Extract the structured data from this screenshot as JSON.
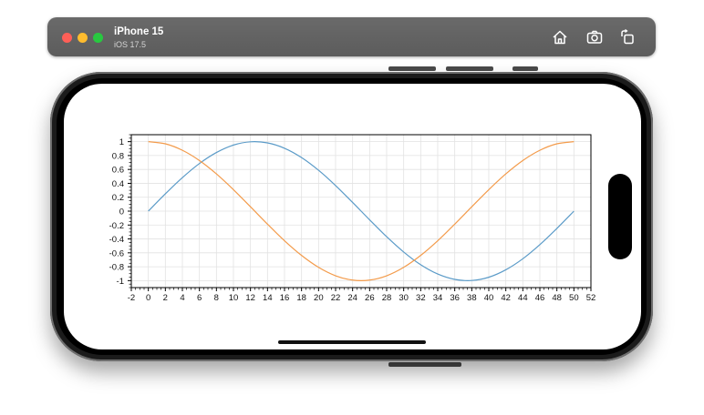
{
  "simulator": {
    "device_name": "iPhone 15",
    "os_version": "iOS 17.5",
    "toolbar_icons": [
      "home-icon",
      "screenshot-icon",
      "rotate-icon"
    ]
  },
  "colors": {
    "series_sine": "#5b9bc8",
    "series_cosine": "#f39b4b",
    "grid": "#e2e2e2",
    "axis": "#000000"
  },
  "chart_data": {
    "type": "line",
    "title": "",
    "xlabel": "",
    "ylabel": "",
    "xlim": [
      -2,
      52
    ],
    "ylim": [
      -1.1,
      1.1
    ],
    "x_ticks": [
      -2,
      0,
      2,
      4,
      6,
      8,
      10,
      12,
      14,
      16,
      18,
      20,
      22,
      24,
      26,
      28,
      30,
      32,
      34,
      36,
      38,
      40,
      42,
      44,
      46,
      48,
      50,
      52
    ],
    "y_ticks": [
      1,
      0.8,
      0.6,
      0.4,
      0.2,
      0,
      -0.2,
      -0.4,
      -0.6,
      -0.8,
      -1
    ],
    "grid": true,
    "legend": "none",
    "series": [
      {
        "x": [
          0,
          2,
          4,
          6,
          8,
          10,
          12,
          14,
          16,
          18,
          20,
          22,
          24,
          26,
          28,
          30,
          32,
          34,
          36,
          38,
          40,
          42,
          44,
          46,
          48,
          50
        ],
        "y": [
          0,
          0.249,
          0.482,
          0.685,
          0.844,
          0.951,
          0.998,
          0.982,
          0.905,
          0.771,
          0.588,
          0.368,
          0.125,
          -0.125,
          -0.368,
          -0.588,
          -0.771,
          -0.905,
          -0.982,
          -0.998,
          -0.951,
          -0.844,
          -0.685,
          -0.482,
          -0.249,
          0
        ]
      },
      {
        "x": [
          0,
          2,
          4,
          6,
          8,
          10,
          12,
          14,
          16,
          18,
          20,
          22,
          24,
          26,
          28,
          30,
          32,
          34,
          36,
          38,
          40,
          42,
          44,
          46,
          48,
          50
        ],
        "y": [
          1,
          0.969,
          0.876,
          0.729,
          0.536,
          0.309,
          0.063,
          -0.187,
          -0.426,
          -0.637,
          -0.809,
          -0.93,
          -0.992,
          -0.992,
          -0.93,
          -0.809,
          -0.637,
          -0.426,
          -0.187,
          0.063,
          0.309,
          0.536,
          0.729,
          0.876,
          0.969,
          1
        ]
      }
    ]
  }
}
